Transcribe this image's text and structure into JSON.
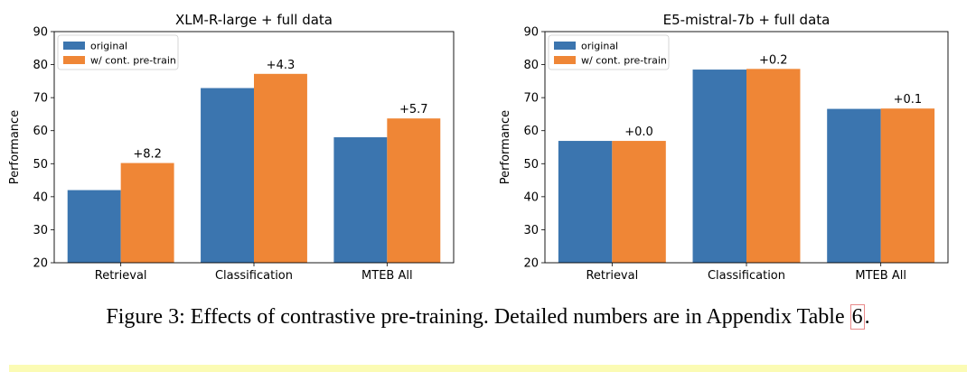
{
  "chart_data": [
    {
      "type": "bar",
      "title": "XLM-R-large + full data",
      "xlabel": "",
      "ylabel": "Performance",
      "ylim": [
        20,
        90
      ],
      "yticks": [
        20,
        30,
        40,
        50,
        60,
        70,
        80,
        90
      ],
      "categories": [
        "Retrieval",
        "Classification",
        "MTEB All"
      ],
      "series": [
        {
          "name": "original",
          "color": "#3b75af",
          "values": [
            42.0,
            72.9,
            58.0
          ]
        },
        {
          "name": "w/ cont. pre-train",
          "color": "#ef8636",
          "values": [
            50.2,
            77.2,
            63.7
          ]
        }
      ],
      "annotations": [
        "+8.2",
        "+4.3",
        "+5.7"
      ],
      "legend": "top-left"
    },
    {
      "type": "bar",
      "title": "E5-mistral-7b + full data",
      "xlabel": "",
      "ylabel": "Performance",
      "ylim": [
        20,
        90
      ],
      "yticks": [
        20,
        30,
        40,
        50,
        60,
        70,
        80,
        90
      ],
      "categories": [
        "Retrieval",
        "Classification",
        "MTEB All"
      ],
      "series": [
        {
          "name": "original",
          "color": "#3b75af",
          "values": [
            56.9,
            78.5,
            66.6
          ]
        },
        {
          "name": "w/ cont. pre-train",
          "color": "#ef8636",
          "values": [
            56.9,
            78.7,
            66.7
          ]
        }
      ],
      "annotations": [
        "+0.0",
        "+0.2",
        "+0.1"
      ],
      "legend": "top-left"
    }
  ],
  "caption": {
    "text": "Figure 3: Effects of contrastive pre-training. Detailed numbers are in Appendix Table ",
    "ref": "6",
    "end": "."
  }
}
